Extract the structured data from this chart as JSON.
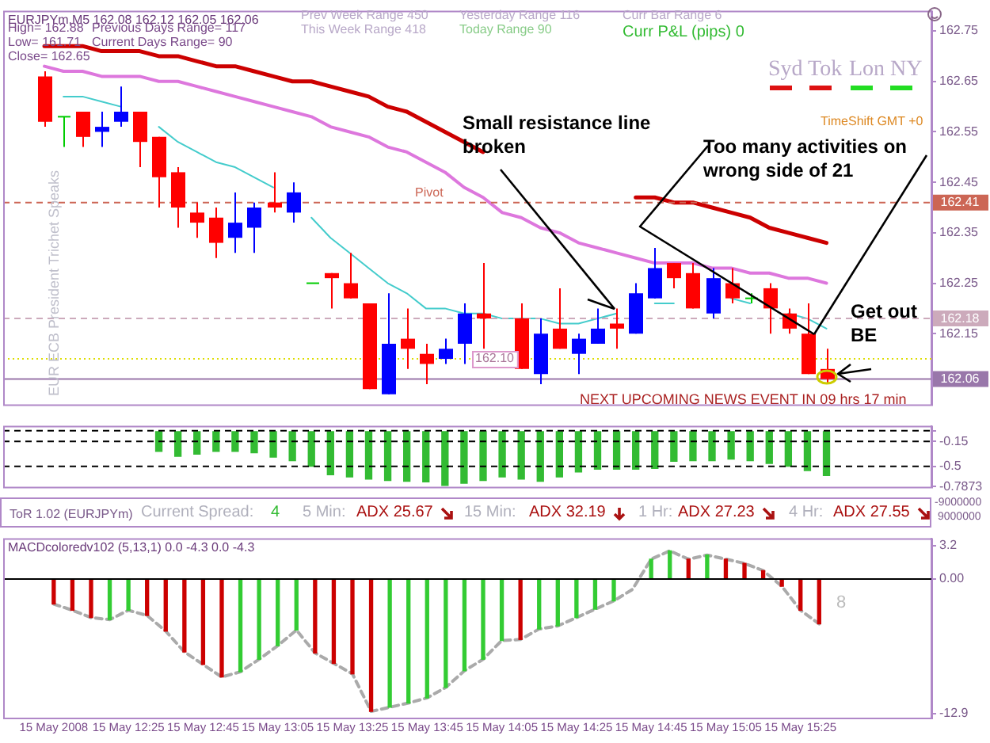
{
  "chart_data": [
    {
      "type": "candlestick",
      "title": "EURJPYm,M5 162.08 162.12 162.05 162.06",
      "ohlc": [
        [
          162.66,
          162.67,
          162.56,
          162.57
        ],
        [
          162.58,
          162.58,
          162.52,
          162.58
        ],
        [
          162.59,
          162.59,
          162.52,
          162.54
        ],
        [
          162.55,
          162.59,
          162.52,
          162.56
        ],
        [
          162.57,
          162.64,
          162.56,
          162.59
        ],
        [
          162.59,
          162.59,
          162.48,
          162.53
        ],
        [
          162.54,
          162.54,
          162.4,
          162.46
        ],
        [
          162.47,
          162.48,
          162.36,
          162.4
        ],
        [
          162.39,
          162.41,
          162.34,
          162.37
        ],
        [
          162.38,
          162.4,
          162.3,
          162.33
        ],
        [
          162.34,
          162.43,
          162.31,
          162.37
        ],
        [
          162.36,
          162.41,
          162.31,
          162.4
        ],
        [
          162.41,
          162.47,
          162.39,
          162.4
        ],
        [
          162.39,
          162.45,
          162.37,
          162.43
        ],
        [
          162.25,
          162.25,
          162.25,
          162.25
        ],
        [
          162.27,
          162.27,
          162.2,
          162.26
        ],
        [
          162.25,
          162.31,
          162.22,
          162.22
        ],
        [
          162.21,
          162.21,
          162.04,
          162.04
        ],
        [
          162.03,
          162.23,
          162.03,
          162.13
        ],
        [
          162.14,
          162.2,
          162.08,
          162.12
        ],
        [
          162.11,
          162.13,
          162.05,
          162.09
        ],
        [
          162.1,
          162.14,
          162.09,
          162.12
        ],
        [
          162.13,
          162.21,
          162.09,
          162.19
        ],
        [
          162.19,
          162.29,
          162.12,
          162.18
        ],
        null,
        [
          162.18,
          162.21,
          162.08,
          162.08
        ],
        [
          162.07,
          162.18,
          162.05,
          162.15
        ],
        [
          162.16,
          162.24,
          162.12,
          162.12
        ],
        [
          162.11,
          162.15,
          162.07,
          162.14
        ],
        [
          162.13,
          162.2,
          162.13,
          162.16
        ],
        [
          162.17,
          162.2,
          162.12,
          162.16
        ],
        [
          162.15,
          162.25,
          162.15,
          162.23
        ],
        [
          162.22,
          162.32,
          162.22,
          162.28
        ],
        [
          162.29,
          162.29,
          162.24,
          162.26
        ],
        [
          162.27,
          162.29,
          162.2,
          162.2
        ],
        [
          162.19,
          162.28,
          162.18,
          162.26
        ],
        [
          162.25,
          162.28,
          162.21,
          162.22
        ],
        [
          162.22,
          162.23,
          162.21,
          162.22
        ],
        [
          162.24,
          162.25,
          162.15,
          162.2
        ],
        [
          162.19,
          162.2,
          162.15,
          162.16
        ],
        [
          162.15,
          162.21,
          162.07,
          162.07
        ],
        [
          162.08,
          162.12,
          162.05,
          162.06
        ],
        null,
        null,
        null,
        null,
        null
      ],
      "colors": [
        "#ff0000",
        "#00cc00",
        "#ff0000",
        "#0000ff",
        "#0000ff",
        "#ff0000",
        "#ff0000",
        "#ff0000",
        "#ff0000",
        "#ff0000",
        "#0000ff",
        "#0000ff",
        "#ff0000",
        "#0000ff",
        "#00cc00",
        "#ff0000",
        "#ff0000",
        "#ff0000",
        "#0000ff",
        "#ff0000",
        "#ff0000",
        "#0000ff",
        "#0000ff",
        "#ff0000",
        null,
        "#ff0000",
        "#0000ff",
        "#ff0000",
        "#0000ff",
        "#0000ff",
        "#ff0000",
        "#0000ff",
        "#0000ff",
        "#ff0000",
        "#ff0000",
        "#0000ff",
        "#ff0000",
        "#00cc00",
        "#ff0000",
        "#ff0000",
        "#ff0000",
        "#ff0000",
        null,
        null,
        null,
        null,
        null
      ],
      "series": [
        {
          "type": "line",
          "color": "#cc0000",
          "values": [
            162.72,
            162.72,
            162.72,
            162.71,
            162.71,
            162.71,
            162.7,
            162.7,
            162.69,
            162.68,
            162.68,
            162.67,
            162.66,
            162.65,
            162.65,
            162.64,
            162.63,
            162.62,
            162.6,
            162.59,
            162.57,
            162.55,
            162.53,
            162.51,
            null,
            null,
            null,
            null,
            null,
            null,
            null,
            162.42,
            162.42,
            162.41,
            162.41,
            162.4,
            162.39,
            162.38,
            162.36,
            162.35,
            162.34,
            162.33,
            null,
            null,
            null,
            null,
            null
          ]
        },
        {
          "type": "line",
          "color": "#dd77dd",
          "values": [
            162.68,
            162.67,
            162.67,
            162.66,
            162.66,
            162.66,
            162.65,
            162.65,
            162.64,
            162.63,
            162.62,
            162.61,
            162.6,
            162.59,
            162.58,
            162.56,
            162.55,
            162.54,
            162.52,
            162.51,
            162.49,
            162.47,
            162.44,
            162.42,
            162.39,
            162.38,
            162.36,
            162.35,
            162.33,
            162.32,
            162.31,
            162.3,
            162.29,
            162.29,
            162.29,
            162.28,
            162.28,
            162.27,
            162.27,
            162.26,
            162.26,
            162.25,
            null,
            null,
            null,
            null,
            null
          ]
        },
        {
          "type": "line",
          "color": "#44cccc",
          "values": [
            null,
            162.62,
            162.62,
            162.61,
            162.6,
            null,
            162.56,
            162.53,
            162.51,
            162.49,
            162.48,
            162.46,
            162.44,
            null,
            162.38,
            162.34,
            162.31,
            162.28,
            162.25,
            162.23,
            162.2,
            162.2,
            162.19,
            162.19,
            162.18,
            162.18,
            162.18,
            162.17,
            162.17,
            162.18,
            162.19,
            null,
            162.21,
            162.21,
            null,
            null,
            162.22,
            162.21,
            null,
            162.19,
            162.18,
            162.16,
            null,
            null,
            null,
            null,
            null
          ]
        }
      ],
      "ylim": [
        162.01,
        162.79
      ],
      "yticks": [
        162.15,
        162.25,
        162.35,
        162.45,
        162.55,
        162.65,
        162.75
      ],
      "tick_labels": "y",
      "ref_lines": [
        {
          "axis": "y",
          "value": 162.41,
          "label": "162.41",
          "color": "#cc6655",
          "line_style": "dashed"
        },
        {
          "axis": "y",
          "value": 162.18,
          "label": "162.18",
          "color": "#ccaabb",
          "line_style": "dashed"
        },
        {
          "axis": "y",
          "value": 162.1,
          "label": "162.10",
          "color": "#dddd00",
          "line_style": "dotted"
        },
        {
          "axis": "y",
          "value": 162.06,
          "label": "162.06",
          "color": "#9977aa",
          "line_style": "solid"
        }
      ],
      "annotations": [
        "High= 162.88",
        "Low= 161.71",
        "Close= 162.65",
        "Previous Days Range= 117",
        "Current Days Range= 90",
        "Prev Week Range 450",
        "This Week Range 418",
        "Yesterday Range 116",
        "Today Range 90",
        "Curr Bar Range 6",
        "Curr P&L (pips) 0",
        "Syd",
        "Tok",
        "Lon",
        "NY",
        "TimeShift GMT +0",
        "EUR ECB President Trichet Speaks",
        "NEXT UPCOMING NEWS EVENT IN 09 hrs 17 min",
        "Small resistance line broken",
        "Too many activities on wrong side of 21",
        "Get out BE",
        {
          "text": "Pivot",
          "y": 162.41
        }
      ]
    },
    {
      "type": "bar",
      "values": [
        null,
        null,
        null,
        null,
        null,
        null,
        -0.29,
        -0.36,
        -0.33,
        -0.29,
        -0.29,
        -0.31,
        -0.37,
        -0.42,
        -0.5,
        -0.62,
        -0.65,
        -0.68,
        -0.7,
        -0.71,
        -0.72,
        -0.77,
        -0.74,
        -0.7,
        -0.65,
        -0.68,
        -0.71,
        -0.65,
        -0.58,
        -0.54,
        -0.54,
        -0.54,
        -0.53,
        -0.43,
        -0.42,
        -0.42,
        -0.4,
        -0.42,
        -0.46,
        -0.5,
        -0.56,
        -0.63,
        null,
        null,
        null,
        null,
        null
      ],
      "color": "#33bb33",
      "ylim": [
        -0.7873,
        0.07
      ],
      "yticks": [
        {
          "value": 0,
          "label": null
        },
        -0.15,
        -0.5,
        -0.7873
      ],
      "tick_labels": "y",
      "ref_lines": [
        {
          "axis": "y",
          "value": 0,
          "color": "#000000",
          "line_style": "dashed"
        },
        {
          "axis": "y",
          "value": -0.15,
          "color": "#000000",
          "line_style": "dashed"
        },
        {
          "axis": "y",
          "value": -0.5,
          "color": "#000000",
          "line_style": "dashed"
        }
      ]
    },
    {
      "type": "other",
      "title": "ToR 1.02 (EURJPYm)",
      "annotations": [
        "Current Spread:",
        "4",
        "5 Min:",
        "ADX 25.67",
        "15 Min:",
        "ADX 32.19",
        "1 Hr:",
        "ADX 27.23",
        "4 Hr:",
        "ADX 27.55",
        "-9000000",
        "9000000"
      ]
    },
    {
      "type": "bar",
      "title": "MACDcoloredv102 (5,13,1) 0.0 -4.3 0.0 -4.3",
      "categories": [
        "15 May 2008",
        null,
        null,
        null,
        "15 May 12:25",
        null,
        null,
        null,
        "15 May 12:45",
        null,
        null,
        null,
        "15 May 13:05",
        null,
        null,
        null,
        "15 May 13:25",
        null,
        null,
        null,
        "15 May 13:45",
        null,
        null,
        null,
        "15 May 14:05",
        null,
        null,
        null,
        "15 May 14:25",
        null,
        null,
        null,
        "15 May 14:45",
        null,
        null,
        null,
        "15 May 15:05",
        null,
        null,
        null,
        "15 May 15:25",
        null,
        null,
        null,
        null,
        null,
        null
      ],
      "series": [
        {
          "type": "bar",
          "values": [
            -2.4,
            -3.0,
            -3.7,
            -3.9,
            -3.0,
            -3.5,
            -5.0,
            -7.0,
            -8.2,
            -9.4,
            -8.9,
            -7.7,
            -6.4,
            -4.9,
            -7.1,
            -8.1,
            -9.1,
            -12.7,
            -12.3,
            -11.9,
            -11.4,
            -10.4,
            -8.8,
            -7.7,
            -5.9,
            -5.8,
            -4.8,
            -4.5,
            -3.7,
            -2.9,
            -2.1,
            null,
            1.9,
            2.7,
            1.9,
            2.3,
            1.9,
            1.5,
            0.8,
            -0.7,
            -3.0,
            -4.3,
            null,
            null,
            null,
            null,
            null
          ],
          "colors": [
            "#cc0000",
            "#cc0000",
            "#cc0000",
            "#33cc33",
            "#33cc33",
            "#cc0000",
            "#cc0000",
            "#cc0000",
            "#cc0000",
            "#cc0000",
            "#33cc33",
            "#33cc33",
            "#33cc33",
            "#33cc33",
            "#cc0000",
            "#cc0000",
            "#cc0000",
            "#cc0000",
            "#33cc33",
            "#33cc33",
            "#33cc33",
            "#33cc33",
            "#33cc33",
            "#33cc33",
            "#33cc33",
            "#cc0000",
            "#33cc33",
            "#33cc33",
            "#33cc33",
            "#33cc33",
            "#33cc33",
            null,
            "#33cc33",
            "#33cc33",
            "#cc0000",
            "#33cc33",
            "#cc0000",
            "#cc0000",
            "#cc0000",
            "#cc0000",
            "#cc0000",
            "#cc0000",
            null,
            null,
            null,
            null,
            null
          ]
        },
        {
          "type": "line",
          "color": "#aaaaaa",
          "line_style": "dashed",
          "values": [
            -2.4,
            -3.0,
            -3.7,
            -3.9,
            -3.0,
            -3.5,
            -5.0,
            -7.0,
            -8.2,
            -9.4,
            -8.9,
            -7.7,
            -6.4,
            -4.9,
            -7.1,
            -8.1,
            -9.1,
            -12.7,
            -12.3,
            -11.9,
            -11.4,
            -10.4,
            -8.8,
            -7.7,
            -5.9,
            -5.8,
            -4.8,
            -4.5,
            -3.7,
            -2.9,
            -2.1,
            -1.0,
            1.9,
            2.7,
            1.9,
            2.3,
            1.9,
            1.5,
            0.8,
            -0.7,
            -3.0,
            -4.3,
            null,
            null,
            null,
            null,
            null
          ]
        }
      ],
      "ylim": [
        -13.3,
        3.9
      ],
      "yticks": [
        3.2,
        {
          "value": 0,
          "label": "0.00"
        },
        -12.9
      ],
      "ref_lines": [
        {
          "axis": "y",
          "value": 0,
          "color": "#000000",
          "line_style": "solid"
        }
      ],
      "annotations": [
        "8"
      ]
    }
  ]
}
